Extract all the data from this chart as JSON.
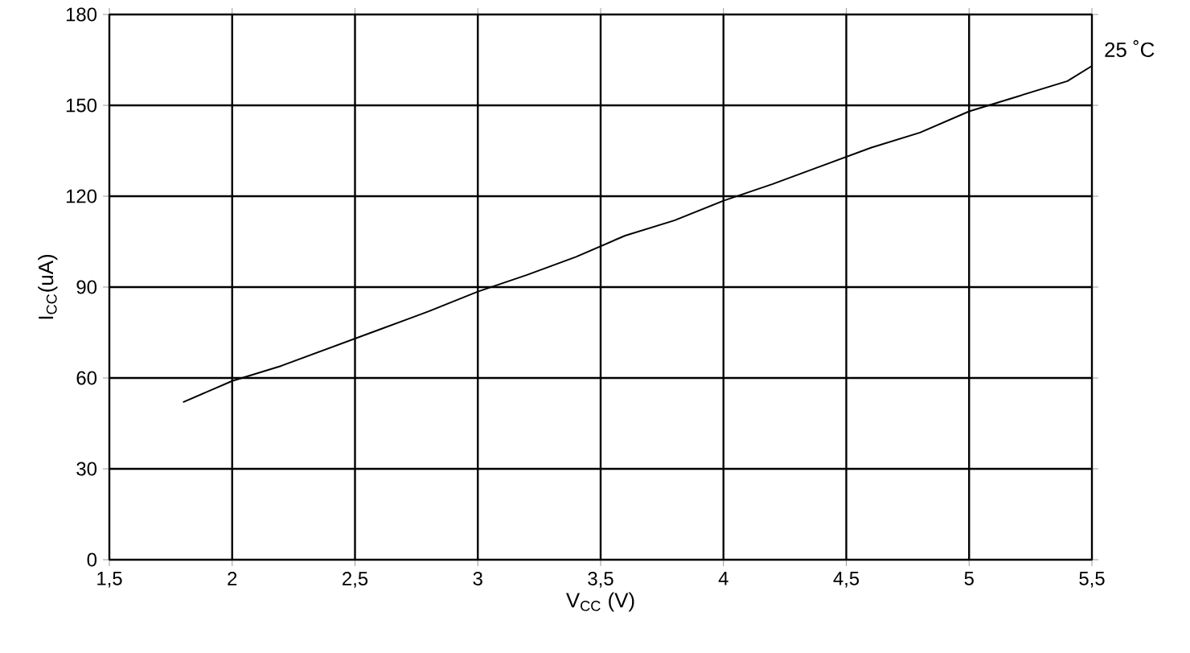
{
  "chart_data": {
    "type": "line",
    "xlabel": "V$_{CC}$ (V)",
    "ylabel": "I$_{CC}$(uA)",
    "xlim": [
      1.5,
      5.5
    ],
    "ylim": [
      0,
      180
    ],
    "xticks": [
      {
        "value": 1.5,
        "label": "1,5"
      },
      2,
      {
        "value": 2.5,
        "label": "2,5"
      },
      3,
      {
        "value": 3.5,
        "label": "3,5"
      },
      4,
      {
        "value": 4.5,
        "label": "4,5"
      },
      5,
      {
        "value": 5.5,
        "label": "5,5"
      }
    ],
    "yticks": [
      0,
      30,
      60,
      90,
      120,
      150,
      180
    ],
    "grid": true,
    "marker": "none",
    "line_style": "solid",
    "annotations": [
      {
        "text": "25 ˚C",
        "x": 5.5,
        "y": 163
      }
    ],
    "series": [
      {
        "color": "#000000",
        "x": [
          1.8,
          2.0,
          2.2,
          2.4,
          2.6,
          2.8,
          3.0,
          3.2,
          3.4,
          3.6,
          3.8,
          4.0,
          4.2,
          4.4,
          4.6,
          4.8,
          5.0,
          5.2,
          5.4,
          5.5
        ],
        "values": [
          52,
          59,
          64,
          70,
          76,
          82,
          88.5,
          94,
          100,
          107,
          112,
          118.5,
          124,
          130,
          136,
          141,
          148,
          153,
          158,
          163
        ]
      }
    ]
  }
}
